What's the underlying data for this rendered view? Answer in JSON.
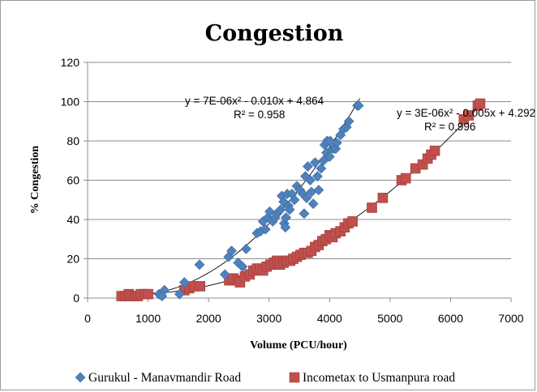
{
  "chart_data": {
    "type": "scatter",
    "title": "Congestion",
    "xlabel": "Volume (PCU/hour)",
    "ylabel": "% Congestion",
    "xlim": [
      0,
      7000
    ],
    "ylim": [
      0,
      120
    ],
    "x_ticks": [
      "0",
      "1000",
      "2000",
      "3000",
      "4000",
      "5000",
      "6000",
      "7000"
    ],
    "y_ticks": [
      "0",
      "20",
      "40",
      "60",
      "80",
      "100",
      "120"
    ],
    "grid": "horizontal",
    "legend_position": "bottom",
    "series": [
      {
        "name": "Gurukul - Manavmandir Road",
        "color": "#4f81bd",
        "marker": "diamond",
        "trendline": {
          "equation": "y = 7E-06x² - 0.010x + 4.864",
          "r2": "R² = 0.958",
          "coefficients": [
            7e-06,
            -0.01,
            4.864
          ],
          "x_range": [
            1000,
            4500
          ]
        },
        "points": [
          [
            1180,
            2
          ],
          [
            1270,
            4
          ],
          [
            1230,
            1
          ],
          [
            1520,
            2
          ],
          [
            1600,
            8
          ],
          [
            1850,
            17
          ],
          [
            2270,
            12
          ],
          [
            2330,
            21
          ],
          [
            2380,
            24
          ],
          [
            2490,
            18
          ],
          [
            2560,
            16
          ],
          [
            2620,
            25
          ],
          [
            2800,
            33
          ],
          [
            2860,
            34
          ],
          [
            2900,
            39
          ],
          [
            2940,
            35
          ],
          [
            2980,
            41
          ],
          [
            3010,
            44
          ],
          [
            3060,
            39
          ],
          [
            3100,
            41
          ],
          [
            3130,
            43
          ],
          [
            3160,
            44
          ],
          [
            3190,
            45
          ],
          [
            3210,
            52
          ],
          [
            3240,
            49
          ],
          [
            3250,
            38
          ],
          [
            3270,
            36
          ],
          [
            3280,
            41
          ],
          [
            3300,
            53
          ],
          [
            3320,
            47
          ],
          [
            3340,
            45
          ],
          [
            3380,
            53
          ],
          [
            3420,
            50
          ],
          [
            3460,
            57
          ],
          [
            3510,
            55
          ],
          [
            3560,
            53
          ],
          [
            3600,
            62
          ],
          [
            3580,
            43
          ],
          [
            3620,
            51
          ],
          [
            3640,
            67
          ],
          [
            3680,
            60
          ],
          [
            3700,
            54
          ],
          [
            3730,
            48
          ],
          [
            3760,
            69
          ],
          [
            3800,
            62
          ],
          [
            3820,
            55
          ],
          [
            3860,
            66
          ],
          [
            3900,
            70
          ],
          [
            3920,
            78
          ],
          [
            3950,
            74
          ],
          [
            3960,
            80
          ],
          [
            4000,
            72
          ],
          [
            4010,
            80
          ],
          [
            4060,
            76
          ],
          [
            4100,
            76
          ],
          [
            4120,
            79
          ],
          [
            4180,
            83
          ],
          [
            4230,
            86
          ],
          [
            4280,
            87
          ],
          [
            4320,
            90
          ],
          [
            4460,
            98
          ],
          [
            4480,
            98
          ]
        ]
      },
      {
        "name": "Incometax to Usmanpura road",
        "color": "#c0504d",
        "marker": "square",
        "trendline": {
          "equation": "y = 3E-06x² - 0.005x + 4.292",
          "r2": "R² = 0.996",
          "coefficients": [
            3e-06,
            -0.005,
            4.292
          ],
          "x_range": [
            500,
            6500
          ]
        },
        "points": [
          [
            560,
            1
          ],
          [
            620,
            1
          ],
          [
            680,
            2
          ],
          [
            720,
            1
          ],
          [
            780,
            1
          ],
          [
            830,
            1
          ],
          [
            880,
            2
          ],
          [
            950,
            2
          ],
          [
            1000,
            2
          ],
          [
            1600,
            4
          ],
          [
            1680,
            5
          ],
          [
            1760,
            6
          ],
          [
            1860,
            6
          ],
          [
            2340,
            9
          ],
          [
            2410,
            10
          ],
          [
            2480,
            9
          ],
          [
            2520,
            8
          ],
          [
            2600,
            11
          ],
          [
            2680,
            12
          ],
          [
            2740,
            14
          ],
          [
            2800,
            15
          ],
          [
            2850,
            15
          ],
          [
            2900,
            14
          ],
          [
            2960,
            16
          ],
          [
            3020,
            17
          ],
          [
            3080,
            18
          ],
          [
            3130,
            19
          ],
          [
            3180,
            17
          ],
          [
            3240,
            18
          ],
          [
            3290,
            19
          ],
          [
            3350,
            19
          ],
          [
            3400,
            20
          ],
          [
            3460,
            21
          ],
          [
            3520,
            22
          ],
          [
            3580,
            23
          ],
          [
            3640,
            23
          ],
          [
            3700,
            24
          ],
          [
            3760,
            26
          ],
          [
            3820,
            27
          ],
          [
            3880,
            29
          ],
          [
            3940,
            30
          ],
          [
            4000,
            32
          ],
          [
            4050,
            31
          ],
          [
            4100,
            33
          ],
          [
            4180,
            34
          ],
          [
            4250,
            36
          ],
          [
            4310,
            38
          ],
          [
            4380,
            39
          ],
          [
            4700,
            46
          ],
          [
            4880,
            51
          ],
          [
            5190,
            60
          ],
          [
            5260,
            61
          ],
          [
            5420,
            66
          ],
          [
            5540,
            68
          ],
          [
            5620,
            71
          ],
          [
            5680,
            73
          ],
          [
            5740,
            75
          ],
          [
            6220,
            91
          ],
          [
            6300,
            93
          ],
          [
            6450,
            98
          ],
          [
            6490,
            99
          ]
        ]
      }
    ]
  }
}
